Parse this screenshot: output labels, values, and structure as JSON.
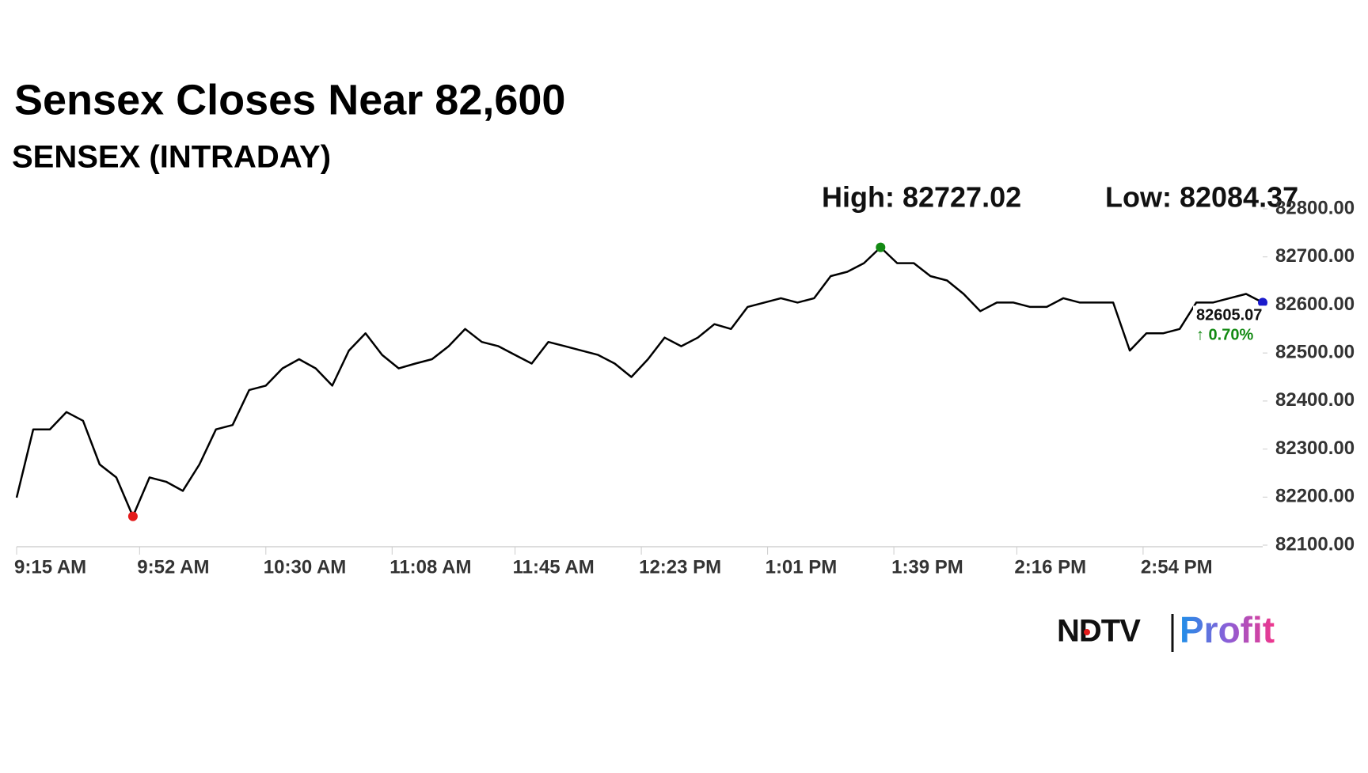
{
  "chart_data": {
    "type": "line",
    "title": "Sensex Closes Near 82,600",
    "subtitle": "SENSEX (INTRADAY)",
    "high": {
      "label": "High: 82727.02",
      "value": 82727.02,
      "color": "#138a13"
    },
    "low": {
      "label": "Low: 82084.37",
      "value": 82084.37,
      "color": "#e41b1b"
    },
    "x": [
      "9:15 AM",
      "9:20 AM",
      "9:25 AM",
      "9:30 AM",
      "9:35 AM",
      "9:40 AM",
      "9:45 AM",
      "9:50 AM",
      "9:55 AM",
      "10:00 AM",
      "10:05 AM",
      "10:10 AM",
      "10:15 AM",
      "10:20 AM",
      "10:25 AM",
      "10:30 AM",
      "10:35 AM",
      "10:40 AM",
      "10:45 AM",
      "10:50 AM",
      "10:55 AM",
      "11:00 AM",
      "11:05 AM",
      "11:10 AM",
      "11:15 AM",
      "11:20 AM",
      "11:25 AM",
      "11:30 AM",
      "11:35 AM",
      "11:40 AM",
      "11:45 AM",
      "11:50 AM",
      "11:55 AM",
      "12:00 PM",
      "12:05 PM",
      "12:10 PM",
      "12:15 PM",
      "12:20 PM",
      "12:25 PM",
      "12:30 PM",
      "12:35 PM",
      "12:40 PM",
      "12:45 PM",
      "12:50 PM",
      "12:55 PM",
      "1:00 PM",
      "1:05 PM",
      "1:10 PM",
      "1:15 PM",
      "1:20 PM",
      "1:25 PM",
      "1:30 PM",
      "1:35 PM",
      "1:40 PM",
      "1:45 PM",
      "1:50 PM",
      "1:55 PM",
      "2:00 PM",
      "2:05 PM",
      "2:10 PM",
      "2:15 PM",
      "2:20 PM",
      "2:25 PM",
      "2:30 PM",
      "2:35 PM",
      "2:40 PM",
      "2:45 PM",
      "2:50 PM",
      "2:55 PM",
      "3:00 PM",
      "3:05 PM",
      "3:10 PM",
      "3:15 PM",
      "3:20 PM",
      "3:25 PM",
      "3:30 PM"
    ],
    "series": [
      {
        "name": "SENSEX",
        "color": "#000000",
        "values": [
          82199,
          82341,
          82341,
          82377,
          82359,
          82268,
          82241,
          82160,
          82241,
          82232,
          82213,
          82268,
          82341,
          82350,
          82423,
          82432,
          82468,
          82487,
          82468,
          82432,
          82505,
          82541,
          82496,
          82468,
          82478,
          82487,
          82514,
          82550,
          82523,
          82514,
          82496,
          82478,
          82523,
          82514,
          82505,
          82496,
          82478,
          82450,
          82487,
          82532,
          82514,
          82532,
          82560,
          82550,
          82596,
          82605,
          82614,
          82605,
          82614,
          82660,
          82669,
          82687,
          82720,
          82687,
          82687,
          82660,
          82651,
          82623,
          82587,
          82605,
          82605,
          82596,
          82596,
          82614,
          82605,
          82605,
          82605,
          82505,
          82541,
          82541,
          82550,
          82605,
          82605,
          82614,
          82623,
          82605.07
        ]
      }
    ],
    "last_color": "#1a1acc",
    "change": {
      "value": 0.7,
      "label": "↑ 0.70%"
    },
    "xlim": [
      "9:15 AM",
      "3:30 PM"
    ],
    "xticks": [
      "9:15 AM",
      "9:52 AM",
      "10:30 AM",
      "11:08 AM",
      "11:45 AM",
      "12:23 PM",
      "1:01 PM",
      "1:39 PM",
      "2:16 PM",
      "2:54 PM"
    ],
    "ylim": [
      82100,
      82800
    ],
    "yticks": [
      {
        "value": 82100,
        "label": "82100.00"
      },
      {
        "value": 82200,
        "label": "82200.00"
      },
      {
        "value": 82300,
        "label": "82300.00"
      },
      {
        "value": 82400,
        "label": "82400.00"
      },
      {
        "value": 82500,
        "label": "82500.00"
      },
      {
        "value": 82600,
        "label": "82600.00"
      },
      {
        "value": 82700,
        "label": "82700.00"
      },
      {
        "value": 82800,
        "label": "82800.00"
      }
    ],
    "grid": false
  },
  "branding": {
    "left": "NDTV",
    "right": "Profit"
  }
}
